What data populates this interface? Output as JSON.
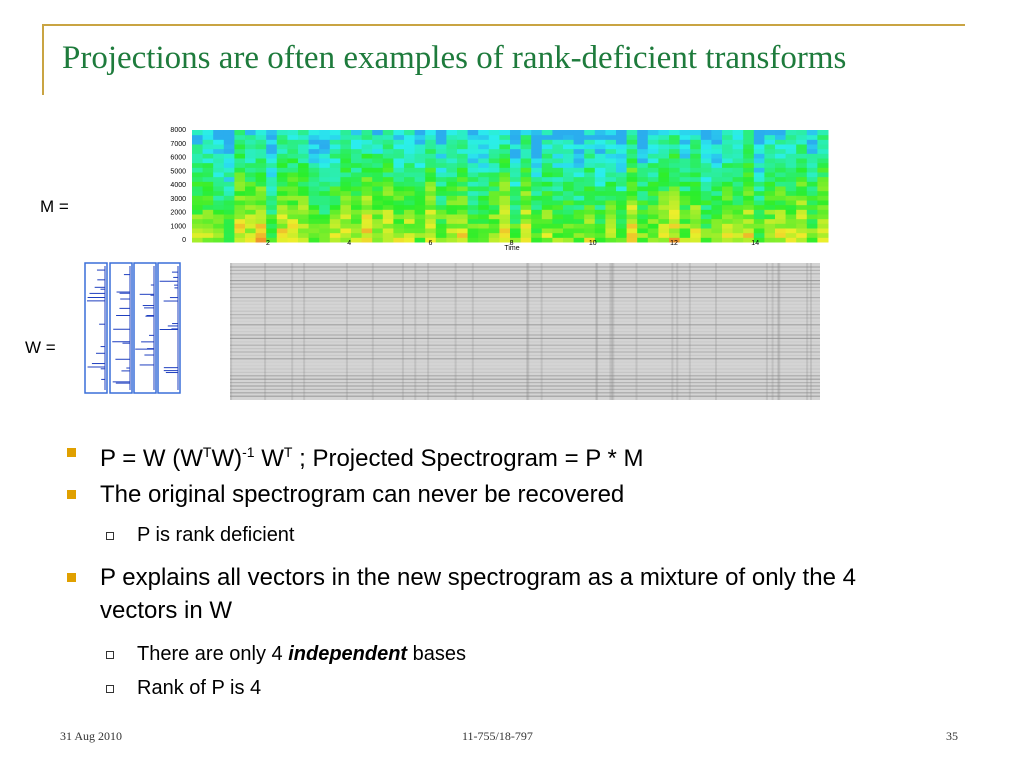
{
  "title": "Projections are often examples of rank-deficient transforms",
  "figure": {
    "m_label": "M =",
    "w_label": "W =",
    "yticks": [
      "0",
      "1000",
      "2000",
      "3000",
      "4000",
      "5000",
      "6000",
      "7000",
      "8000"
    ],
    "xticks": [
      "2",
      "4",
      "6",
      "8",
      "10",
      "12",
      "14"
    ],
    "xlabel": "Time"
  },
  "bullets": [
    {
      "segments": [
        "P = W (W",
        "T",
        "W)",
        "-1",
        " W",
        "T",
        " ; Projected Spectrogram = P * M"
      ]
    },
    {
      "text": "The original spectrogram can never be recovered",
      "sub": [
        "P is rank deficient"
      ]
    },
    {
      "text": "P explains all vectors in the new spectrogram as a mixture of only the 4 vectors in W",
      "sub": [
        {
          "segments": [
            "There are only 4 ",
            "independent",
            " bases"
          ]
        },
        "Rank of P is 4"
      ]
    }
  ],
  "footer": {
    "date": "31 Aug 2010",
    "course": "11-755/18-797",
    "page": "35"
  }
}
